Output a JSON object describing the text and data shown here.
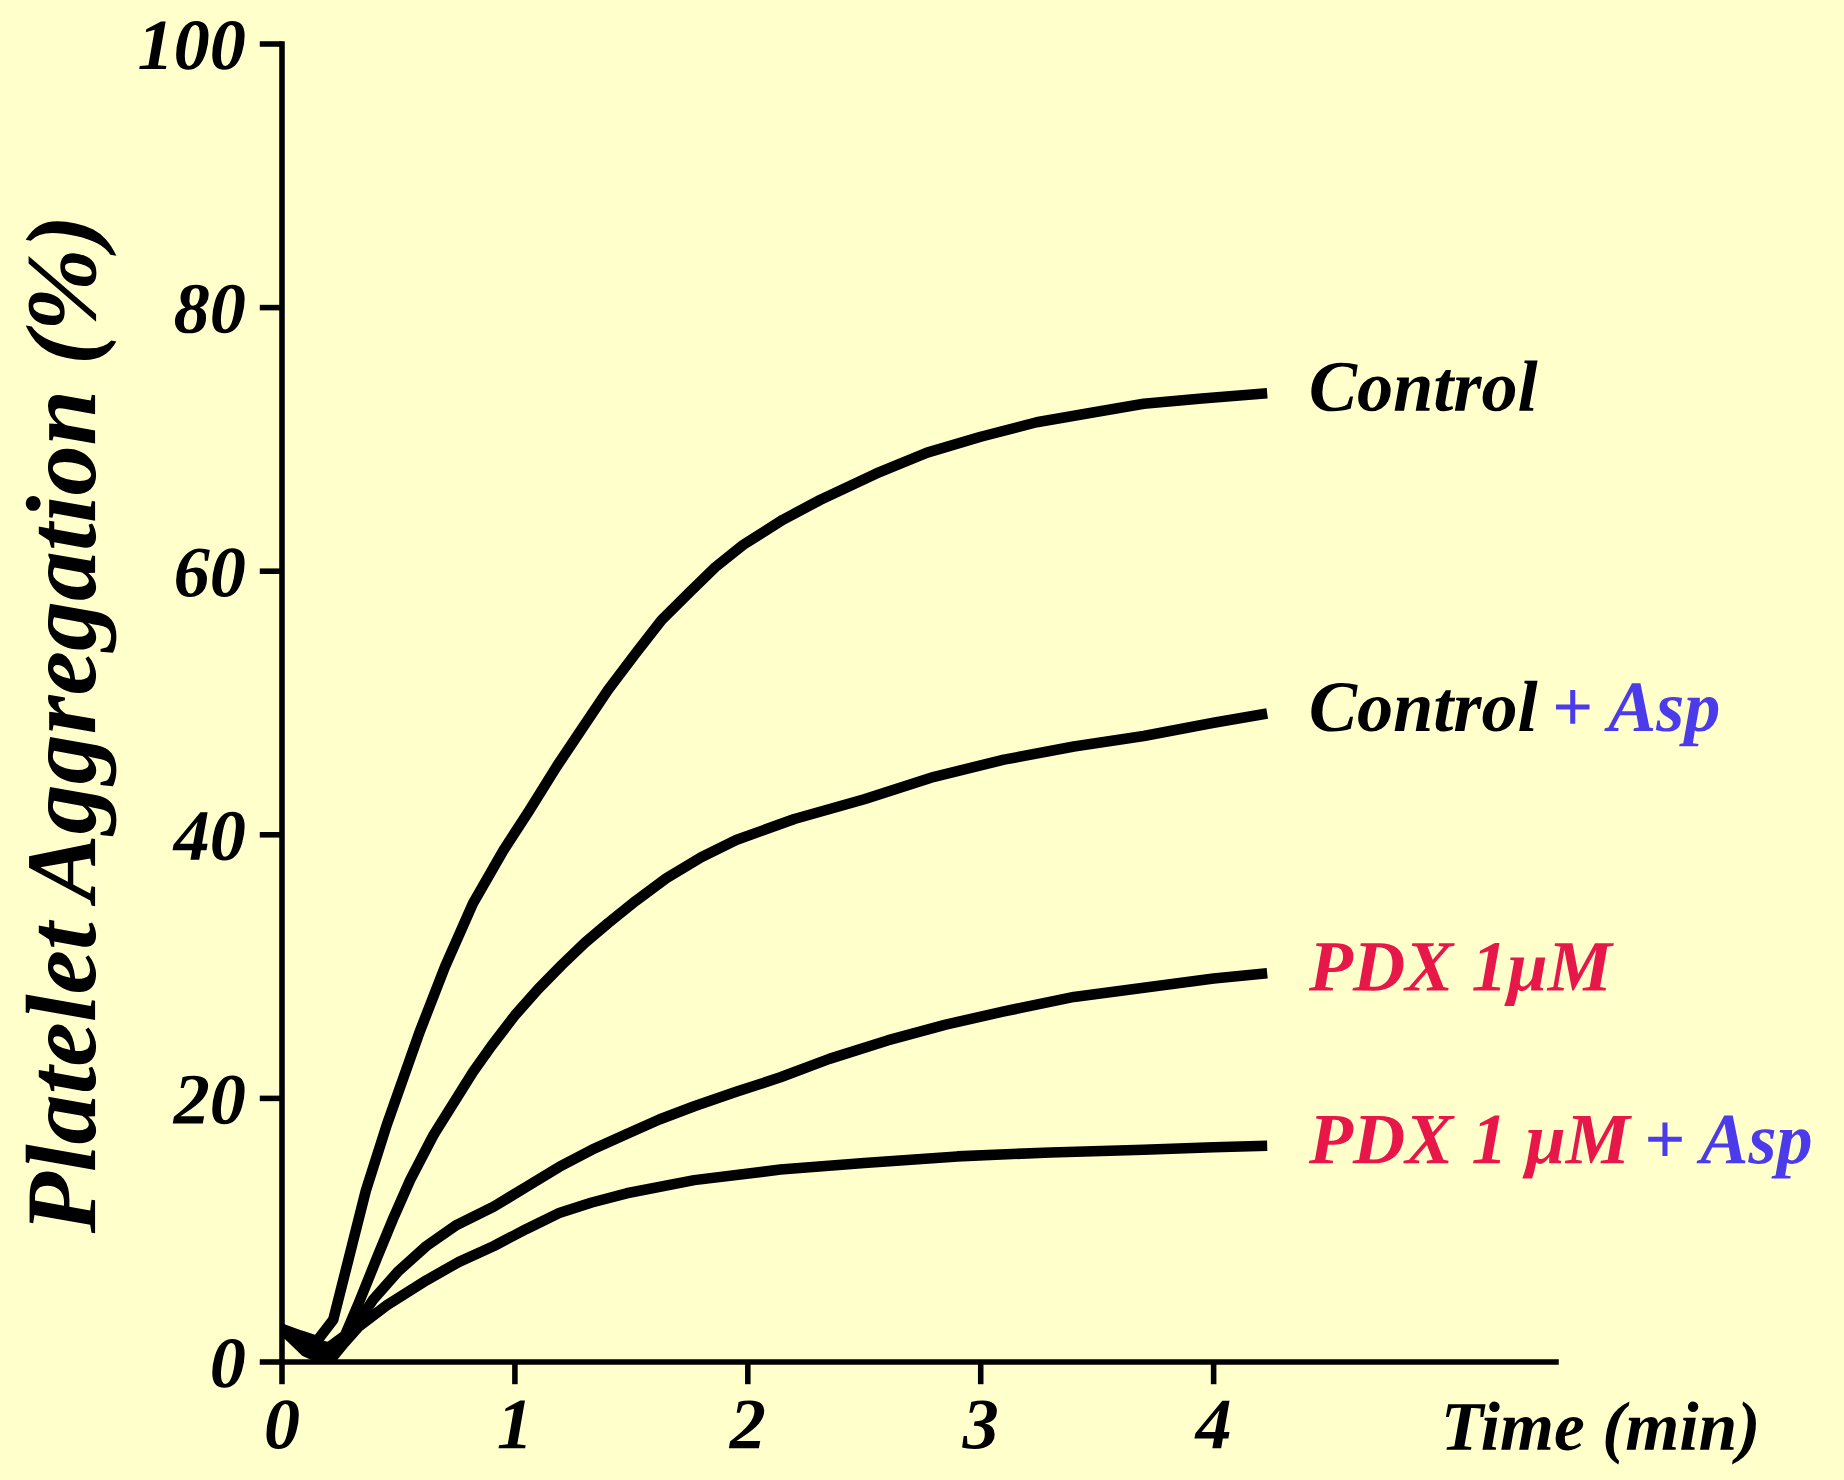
{
  "chart_data": {
    "type": "line",
    "xlabel": "Time (min)",
    "ylabel": "Platelet Aggregation (%)",
    "xlim": [
      0,
      5.47
    ],
    "ylim": [
      0,
      100
    ],
    "xticks": [
      0,
      1,
      2,
      3,
      4
    ],
    "yticks": [
      0,
      20,
      40,
      60,
      80,
      100
    ],
    "series": [
      {
        "name": "Control",
        "color": "#000000",
        "x": [
          0,
          0.08,
          0.15,
          0.22,
          0.3,
          0.36,
          0.45,
          0.59,
          0.7,
          0.82,
          0.95,
          1.06,
          1.18,
          1.29,
          1.4,
          1.52,
          1.63,
          1.75,
          1.86,
          1.98,
          2.15,
          2.31,
          2.55,
          2.77,
          3.0,
          3.24,
          3.5,
          3.7,
          3.95,
          4.23
        ],
        "values": [
          2.5,
          2.0,
          1.6,
          3.2,
          8.8,
          13,
          18,
          25,
          30,
          34.8,
          38.8,
          41.8,
          45.2,
          48.1,
          51,
          53.8,
          56.3,
          58.4,
          60.3,
          62.0,
          63.9,
          65.4,
          67.4,
          69.0,
          70.2,
          71.3,
          72.1,
          72.7,
          73.1,
          73.5
        ]
      },
      {
        "name": "Control + Asp",
        "color": "#000000",
        "x": [
          0,
          0.1,
          0.2,
          0.27,
          0.33,
          0.41,
          0.48,
          0.55,
          0.65,
          0.82,
          0.9,
          1.0,
          1.1,
          1.2,
          1.3,
          1.4,
          1.52,
          1.65,
          1.8,
          1.95,
          2.2,
          2.5,
          2.8,
          3.1,
          3.4,
          3.7,
          4.0,
          4.23
        ],
        "values": [
          2.5,
          1.6,
          1.1,
          2.0,
          4.5,
          8.0,
          11.0,
          13.8,
          17.2,
          22.0,
          24.0,
          26.3,
          28.3,
          30.1,
          31.8,
          33.3,
          35.0,
          36.7,
          38.3,
          39.6,
          41.2,
          42.7,
          44.4,
          45.7,
          46.7,
          47.5,
          48.5,
          49.2
        ]
      },
      {
        "name": "PDX 1μM",
        "color": "#000000",
        "x": [
          0,
          0.1,
          0.2,
          0.3,
          0.39,
          0.5,
          0.62,
          0.75,
          0.91,
          1.05,
          1.19,
          1.33,
          1.48,
          1.62,
          1.77,
          1.95,
          2.14,
          2.35,
          2.6,
          2.85,
          3.1,
          3.4,
          3.7,
          4.0,
          4.23
        ],
        "values": [
          2.5,
          1.0,
          0.3,
          2.3,
          4.7,
          6.9,
          8.8,
          10.4,
          11.8,
          13.3,
          14.8,
          16.1,
          17.3,
          18.4,
          19.4,
          20.5,
          21.6,
          23.0,
          24.4,
          25.6,
          26.6,
          27.7,
          28.4,
          29.1,
          29.5
        ]
      },
      {
        "name": "PDX 1 μM + Asp",
        "color": "#000000",
        "x": [
          0,
          0.1,
          0.2,
          0.27,
          0.33,
          0.45,
          0.62,
          0.76,
          0.91,
          1.05,
          1.19,
          1.33,
          1.48,
          1.77,
          2.14,
          2.5,
          2.9,
          3.3,
          3.7,
          4.0,
          4.23
        ],
        "values": [
          2.5,
          0.8,
          0.0,
          1.5,
          2.7,
          4.3,
          6.2,
          7.6,
          8.8,
          10.1,
          11.3,
          12.1,
          12.8,
          13.8,
          14.6,
          15.1,
          15.6,
          15.9,
          16.1,
          16.3,
          16.4
        ]
      }
    ]
  }
}
